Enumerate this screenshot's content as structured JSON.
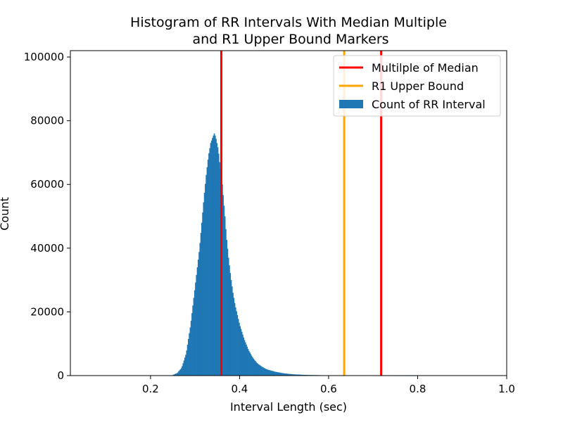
{
  "chart_data": {
    "type": "histogram",
    "title_lines": [
      "Histogram of RR Intervals With Median Multiple",
      "and R1 Upper Bound Markers"
    ],
    "xlabel": "Interval Length (sec)",
    "ylabel": "Count",
    "xlim": [
      0.02,
      1.0
    ],
    "ylim": [
      0,
      102000
    ],
    "xticks": [
      0.2,
      0.4,
      0.6,
      0.8,
      1.0
    ],
    "xtick_labels": [
      "0.2",
      "0.4",
      "0.6",
      "0.8",
      "1.0"
    ],
    "yticks": [
      0,
      20000,
      40000,
      60000,
      80000,
      100000
    ],
    "ytick_labels": [
      "0",
      "20000",
      "40000",
      "60000",
      "80000",
      "100000"
    ],
    "bin_width": 0.002,
    "histogram": {
      "name": "Count of RR Interval",
      "color": "#1f77b4",
      "bin_centers": [
        0.25,
        0.26,
        0.27,
        0.28,
        0.29,
        0.3,
        0.31,
        0.315,
        0.32,
        0.325,
        0.33,
        0.335,
        0.34,
        0.343,
        0.346,
        0.349,
        0.352,
        0.355,
        0.358,
        0.361,
        0.364,
        0.367,
        0.37,
        0.375,
        0.38,
        0.385,
        0.39,
        0.395,
        0.4,
        0.41,
        0.42,
        0.43,
        0.44,
        0.45,
        0.46,
        0.48,
        0.5,
        0.52,
        0.55,
        0.6,
        0.65,
        0.7,
        0.75,
        0.8
      ],
      "counts": [
        200,
        800,
        2500,
        7000,
        16000,
        28000,
        40000,
        48000,
        56000,
        63000,
        69000,
        73000,
        75000,
        76000,
        75000,
        73000,
        71000,
        67000,
        64000,
        60000,
        55000,
        50000,
        44000,
        37000,
        31000,
        26000,
        22000,
        19000,
        16000,
        11500,
        8000,
        5500,
        3800,
        2800,
        2000,
        1200,
        700,
        400,
        200,
        80,
        40,
        20,
        8,
        2
      ]
    },
    "vlines": [
      {
        "name": "Multilple of Median",
        "color": "#ff0000",
        "x": [
          0.359,
          0.718
        ]
      },
      {
        "name": "R1 Upper Bound",
        "color": "#ffa500",
        "x": [
          0.635
        ]
      }
    ],
    "legend": {
      "placement": "top-right",
      "entries": [
        {
          "label": "Multilple of Median",
          "kind": "line",
          "color": "#ff0000"
        },
        {
          "label": "R1 Upper Bound",
          "kind": "line",
          "color": "#ffa500"
        },
        {
          "label": "Count of RR Interval",
          "kind": "patch",
          "color": "#1f77b4"
        }
      ]
    }
  }
}
